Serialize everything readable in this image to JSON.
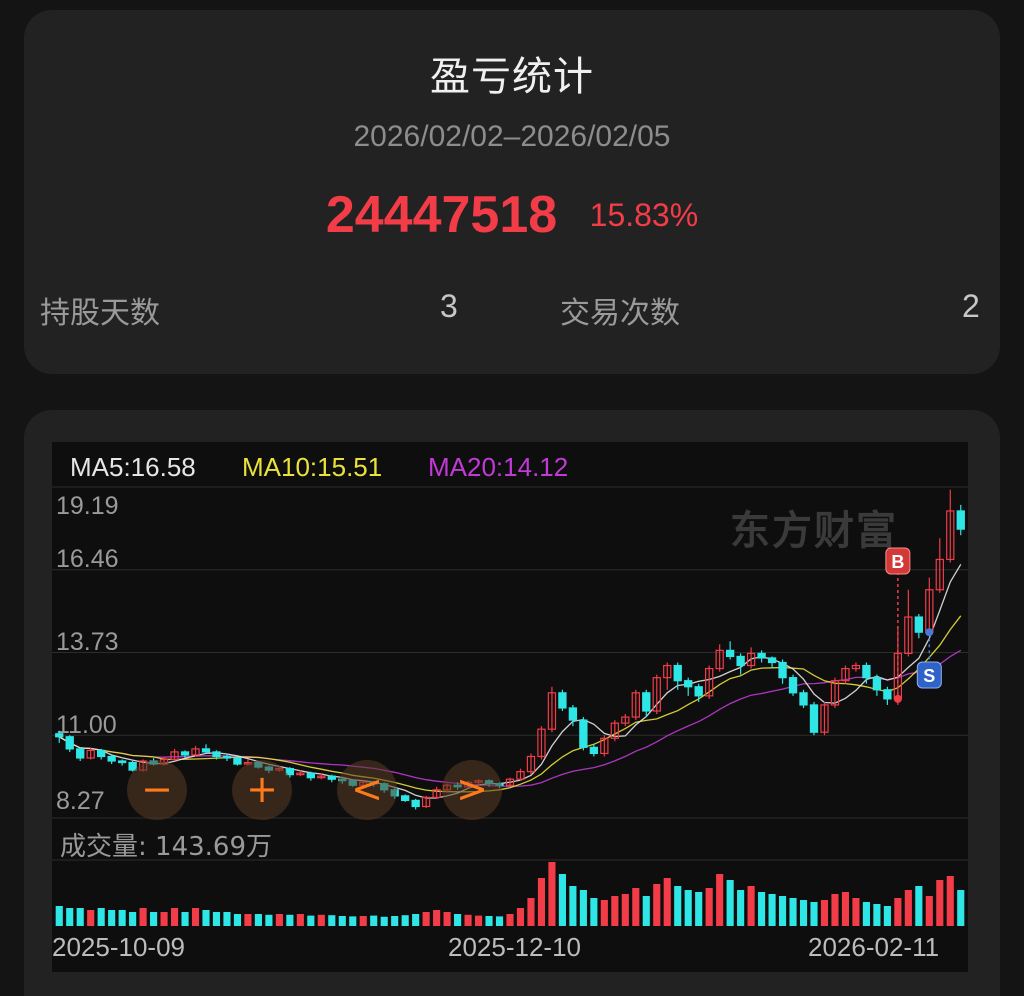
{
  "summary": {
    "title": "盈亏统计",
    "date_range": "2026/02/02–2026/02/05",
    "pnl_amount": "24447518",
    "pnl_percent": "15.83%",
    "hold_days_label": "持股天数",
    "hold_days_value": "3",
    "trade_count_label": "交易次数",
    "trade_count_value": "2"
  },
  "watermark": "东方财富",
  "controls": {
    "zoom_out": "−",
    "zoom_in": "+",
    "prev": "<",
    "next": ">"
  },
  "colors": {
    "up": "#f23c48",
    "down": "#2ee6e6",
    "ma5": "#e6e6e6",
    "ma10": "#e8e23a",
    "ma20": "#c03ad6",
    "accent": "#f23c48",
    "control": "#ff7a1a"
  },
  "chart_data": {
    "type": "candlestick",
    "ma_legend": {
      "ma5": "MA5:16.58",
      "ma10": "MA10:15.51",
      "ma20": "MA20:14.12"
    },
    "y_ticks": [
      "19.19",
      "16.46",
      "13.73",
      "11.00",
      "8.27"
    ],
    "ylim": [
      8.27,
      19.19
    ],
    "x_ticks": [
      "2025-10-09",
      "2025-12-10",
      "2026-02-11"
    ],
    "volume_label": "成交量: 143.69万",
    "markers": [
      {
        "label": "B",
        "date": "2026-02-02"
      },
      {
        "label": "S",
        "date": "2026-02-05"
      }
    ],
    "candles": [
      [
        11.05,
        10.95,
        11.15,
        10.75
      ],
      [
        10.95,
        10.55,
        11.0,
        10.45
      ],
      [
        10.55,
        10.25,
        10.6,
        10.15
      ],
      [
        10.25,
        10.5,
        10.6,
        10.2
      ],
      [
        10.5,
        10.3,
        10.55,
        10.2
      ],
      [
        10.3,
        10.15,
        10.35,
        10.05
      ],
      [
        10.15,
        10.1,
        10.2,
        10.0
      ],
      [
        10.1,
        9.85,
        10.15,
        9.8
      ],
      [
        9.85,
        10.15,
        10.2,
        9.8
      ],
      [
        10.15,
        10.05,
        10.25,
        10.0
      ],
      [
        10.05,
        10.2,
        10.3,
        10.0
      ],
      [
        10.2,
        10.45,
        10.55,
        10.15
      ],
      [
        10.45,
        10.35,
        10.5,
        10.25
      ],
      [
        10.35,
        10.55,
        10.65,
        10.3
      ],
      [
        10.55,
        10.45,
        10.7,
        10.4
      ],
      [
        10.45,
        10.3,
        10.5,
        10.2
      ],
      [
        10.3,
        10.25,
        10.4,
        10.15
      ],
      [
        10.25,
        10.05,
        10.3,
        10.0
      ],
      [
        10.05,
        10.1,
        10.2,
        10.0
      ],
      [
        10.1,
        9.95,
        10.15,
        9.9
      ],
      [
        9.95,
        9.85,
        10.0,
        9.75
      ],
      [
        9.85,
        9.9,
        10.0,
        9.8
      ],
      [
        9.9,
        9.7,
        9.95,
        9.6
      ],
      [
        9.7,
        9.75,
        9.85,
        9.65
      ],
      [
        9.75,
        9.6,
        9.8,
        9.5
      ],
      [
        9.6,
        9.65,
        9.75,
        9.55
      ],
      [
        9.65,
        9.55,
        9.7,
        9.45
      ],
      [
        9.55,
        9.5,
        9.6,
        9.4
      ],
      [
        9.5,
        9.35,
        9.55,
        9.3
      ],
      [
        9.35,
        9.45,
        9.5,
        9.3
      ],
      [
        9.45,
        9.4,
        9.5,
        9.3
      ],
      [
        9.4,
        9.2,
        9.45,
        9.1
      ],
      [
        9.2,
        9.0,
        9.25,
        8.9
      ],
      [
        9.0,
        8.85,
        9.05,
        8.8
      ],
      [
        8.85,
        8.65,
        8.9,
        8.55
      ],
      [
        8.65,
        8.95,
        9.0,
        8.6
      ],
      [
        8.95,
        9.2,
        9.3,
        8.9
      ],
      [
        9.2,
        9.35,
        9.4,
        9.1
      ],
      [
        9.35,
        9.3,
        9.45,
        9.2
      ],
      [
        9.3,
        9.45,
        9.5,
        9.25
      ],
      [
        9.45,
        9.5,
        9.55,
        9.35
      ],
      [
        9.5,
        9.4,
        9.55,
        9.3
      ],
      [
        9.4,
        9.35,
        9.45,
        9.25
      ],
      [
        9.35,
        9.55,
        9.6,
        9.3
      ],
      [
        9.55,
        9.8,
        9.9,
        9.5
      ],
      [
        9.8,
        10.3,
        10.4,
        9.7
      ],
      [
        10.3,
        11.2,
        11.3,
        10.2
      ],
      [
        11.2,
        12.4,
        12.6,
        11.1
      ],
      [
        12.4,
        11.9,
        12.5,
        11.8
      ],
      [
        11.9,
        11.5,
        12.0,
        11.3
      ],
      [
        11.5,
        10.6,
        11.6,
        10.5
      ],
      [
        10.6,
        10.4,
        10.7,
        10.3
      ],
      [
        10.4,
        10.9,
        11.0,
        10.3
      ],
      [
        10.9,
        11.4,
        11.5,
        10.8
      ],
      [
        11.4,
        11.6,
        11.7,
        11.3
      ],
      [
        11.6,
        12.4,
        12.5,
        11.5
      ],
      [
        12.4,
        11.8,
        12.5,
        11.6
      ],
      [
        11.8,
        12.9,
        13.0,
        11.7
      ],
      [
        12.9,
        13.3,
        13.4,
        12.5
      ],
      [
        13.3,
        12.8,
        13.4,
        12.5
      ],
      [
        12.8,
        12.6,
        12.9,
        12.3
      ],
      [
        12.6,
        12.3,
        12.7,
        12.1
      ],
      [
        12.3,
        13.2,
        13.3,
        12.2
      ],
      [
        13.2,
        13.8,
        14.0,
        13.1
      ],
      [
        13.8,
        13.6,
        14.1,
        13.5
      ],
      [
        13.6,
        13.3,
        13.7,
        13.0
      ],
      [
        13.3,
        13.7,
        13.9,
        13.2
      ],
      [
        13.7,
        13.55,
        13.8,
        13.4
      ],
      [
        13.55,
        13.4,
        13.6,
        13.2
      ],
      [
        13.4,
        12.9,
        13.5,
        12.7
      ],
      [
        12.9,
        12.4,
        13.0,
        12.3
      ],
      [
        12.4,
        12.0,
        12.5,
        11.9
      ],
      [
        12.0,
        11.1,
        12.1,
        11.0
      ],
      [
        11.1,
        12.0,
        12.1,
        11.0
      ],
      [
        12.0,
        12.8,
        12.9,
        11.9
      ],
      [
        12.8,
        13.2,
        13.3,
        12.7
      ],
      [
        13.2,
        13.3,
        13.4,
        13.1
      ],
      [
        13.3,
        12.9,
        13.4,
        12.7
      ],
      [
        12.9,
        12.5,
        13.0,
        12.3
      ],
      [
        12.5,
        12.2,
        12.6,
        12.0
      ],
      [
        12.2,
        13.7,
        14.6,
        12.0
      ],
      [
        13.7,
        14.9,
        15.8,
        13.6
      ],
      [
        14.9,
        14.4,
        15.0,
        14.2
      ],
      [
        14.4,
        15.8,
        16.2,
        14.3
      ],
      [
        15.8,
        16.8,
        17.5,
        15.7
      ],
      [
        16.8,
        18.4,
        19.1,
        16.7
      ],
      [
        18.4,
        17.8,
        18.6,
        17.6
      ]
    ],
    "volumes": [
      0.5,
      0.45,
      0.45,
      0.4,
      0.45,
      0.4,
      0.4,
      0.35,
      0.45,
      0.35,
      0.35,
      0.45,
      0.35,
      0.45,
      0.4,
      0.35,
      0.35,
      0.3,
      0.3,
      0.3,
      0.28,
      0.3,
      0.28,
      0.3,
      0.26,
      0.28,
      0.27,
      0.25,
      0.24,
      0.25,
      0.26,
      0.23,
      0.25,
      0.27,
      0.3,
      0.35,
      0.4,
      0.35,
      0.3,
      0.28,
      0.26,
      0.25,
      0.24,
      0.3,
      0.45,
      0.7,
      1.2,
      1.6,
      1.3,
      1.0,
      0.9,
      0.7,
      0.65,
      0.75,
      0.8,
      0.95,
      0.75,
      1.05,
      1.2,
      1.0,
      0.9,
      0.85,
      0.95,
      1.3,
      1.15,
      0.9,
      1.0,
      0.85,
      0.8,
      0.75,
      0.7,
      0.65,
      0.6,
      0.65,
      0.8,
      0.85,
      0.7,
      0.6,
      0.55,
      0.5,
      0.7,
      0.9,
      1.0,
      0.75,
      1.15,
      1.25,
      0.9
    ]
  }
}
